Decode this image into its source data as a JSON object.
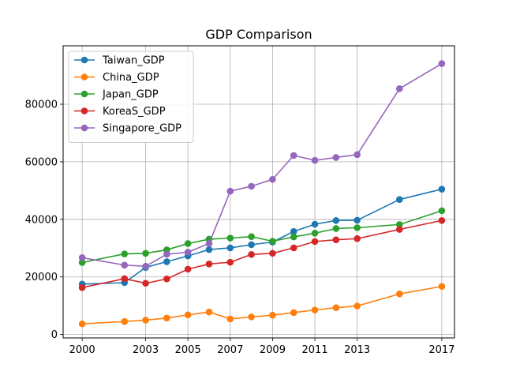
{
  "chart_data": {
    "type": "line",
    "title": "GDP Comparison",
    "xlabel": "",
    "ylabel": "",
    "x": [
      2000,
      2002,
      2003,
      2004,
      2005,
      2006,
      2007,
      2008,
      2009,
      2010,
      2011,
      2012,
      2013,
      2015,
      2017
    ],
    "xticks": [
      2000,
      2003,
      2005,
      2007,
      2009,
      2011,
      2013,
      2017
    ],
    "yticks": [
      0,
      20000,
      40000,
      60000,
      80000
    ],
    "xlim": [
      1999.1,
      2017.6
    ],
    "ylim": [
      -1200,
      100300
    ],
    "grid": true,
    "legend_position": "upper-left",
    "series": [
      {
        "name": "Taiwan_GDP",
        "color": "#1f77b4",
        "values": [
          17500,
          18000,
          23300,
          25300,
          27300,
          29500,
          30100,
          31200,
          32100,
          35800,
          38300,
          39600,
          39700,
          46900,
          50500
        ]
      },
      {
        "name": "China_GDP",
        "color": "#ff7f0e",
        "values": [
          3700,
          4500,
          5000,
          5700,
          6800,
          7800,
          5400,
          6100,
          6700,
          7600,
          8500,
          9300,
          9900,
          14100,
          16700
        ]
      },
      {
        "name": "Japan_GDP",
        "color": "#2ca02c",
        "values": [
          25000,
          28000,
          28200,
          29400,
          31600,
          33100,
          33500,
          34000,
          32400,
          33900,
          35200,
          36800,
          37100,
          38200,
          43000
        ]
      },
      {
        "name": "KoreaS_GDP",
        "color": "#d62728",
        "values": [
          16300,
          19400,
          17800,
          19300,
          22700,
          24500,
          25100,
          27800,
          28200,
          30100,
          32300,
          32900,
          33300,
          36500,
          39600
        ]
      },
      {
        "name": "Singapore_GDP",
        "color": "#9467bd",
        "values": [
          26700,
          24100,
          23700,
          27900,
          28600,
          31600,
          49800,
          51500,
          53900,
          62200,
          60500,
          61500,
          62500,
          85400,
          94100
        ]
      }
    ]
  }
}
